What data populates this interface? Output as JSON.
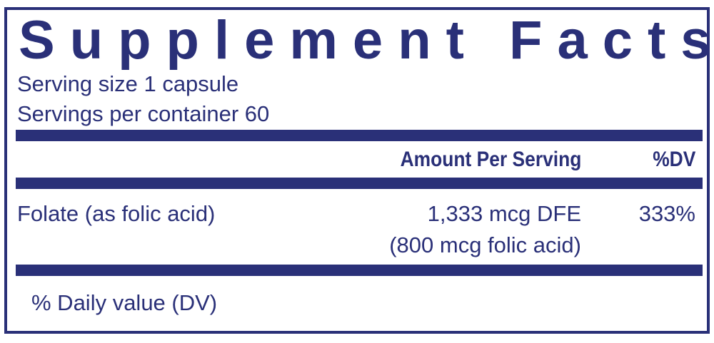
{
  "title": "Supplement Facts",
  "serving_size": "Serving size  1 capsule",
  "servings_per_container": "Servings per container  60",
  "table": {
    "headers": [
      "Amount Per Serving",
      "%DV"
    ],
    "rows": [
      {
        "name": "Folate (as folic acid)",
        "amount": "1,333 mcg DFE",
        "amount_note": "(800 mcg folic acid)",
        "dv": "333%"
      }
    ]
  },
  "footnote": "% Daily value (DV)",
  "colors": {
    "ink": "#2a3078",
    "background": "#ffffff"
  }
}
